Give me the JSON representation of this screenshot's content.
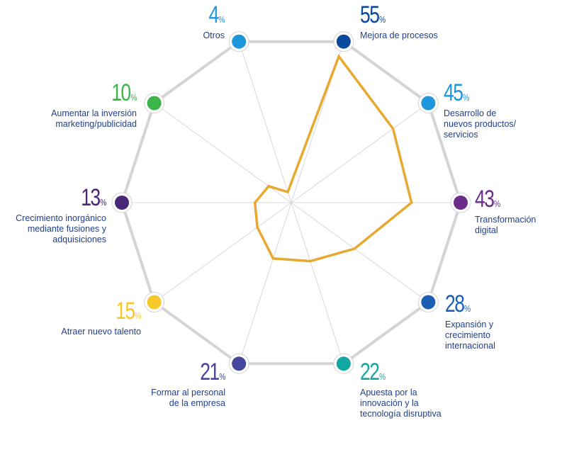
{
  "chart_data": {
    "type": "radar",
    "title": "",
    "unit": "%",
    "scale_max": 55,
    "categories": [
      {
        "label": "Mejora de procesos",
        "value": 55,
        "color": "#0a4a9c"
      },
      {
        "label": "Desarrollo de\nnuevos productos/\nservicios",
        "value": 45,
        "color": "#1e96dc"
      },
      {
        "label": "Transformación\ndigital",
        "value": 43,
        "color": "#6b2c8c"
      },
      {
        "label": "Expansión y\ncrecimiento\ninternacional",
        "value": 28,
        "color": "#1b5fb5"
      },
      {
        "label": "Apuesta por la\ninnovación y la\ntecnología disruptiva",
        "value": 22,
        "color": "#12a7a0"
      },
      {
        "label": "Formar al personal\nde la empresa",
        "value": 21,
        "color": "#45469c"
      },
      {
        "label": "Atraer nuevo talento",
        "value": 15,
        "color": "#f7c82b"
      },
      {
        "label": "Crecimiento inorgánico\nmediante fusiones y\nadquisiciones",
        "value": 13,
        "color": "#4a2678"
      },
      {
        "label": "Aumentar la inversión\nmarketing/publicidad",
        "value": 10,
        "color": "#3cb449"
      },
      {
        "label": "Otros",
        "value": 4,
        "color": "#1e96dc"
      }
    ],
    "series_color": "#e8a930",
    "frame_color": "#d4d4d4"
  }
}
